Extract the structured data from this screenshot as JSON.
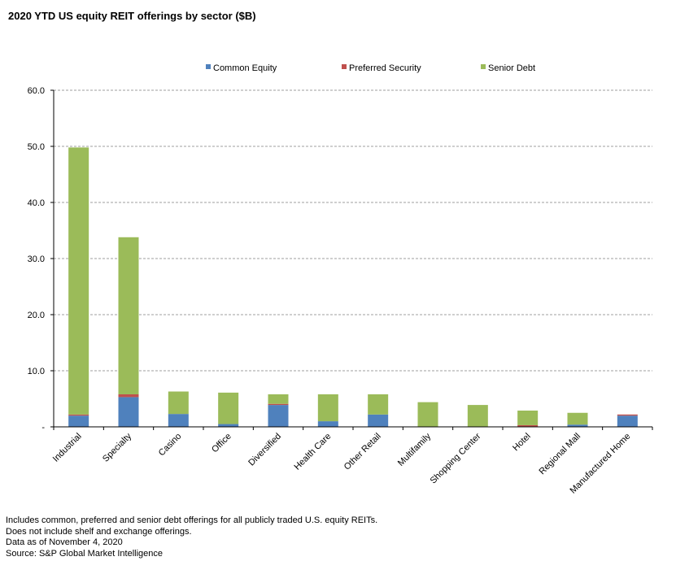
{
  "chart_data": {
    "type": "bar",
    "stacked": true,
    "title": "2020 YTD US equity REIT offerings by sector ($B)",
    "categories": [
      "Industrial",
      "Specialty",
      "Casino",
      "Office",
      "Diversified",
      "Health Care",
      "Other Retail",
      "Multifamily",
      "Shopping Center",
      "Hotel",
      "Regional Mall",
      "Manufactured Home"
    ],
    "series": [
      {
        "name": "Common Equity",
        "color": "#4f81bd",
        "values": [
          2.0,
          5.3,
          2.3,
          0.5,
          3.9,
          1.0,
          2.2,
          0.0,
          0.0,
          0.0,
          0.4,
          2.0
        ]
      },
      {
        "name": "Preferred Security",
        "color": "#c0504d",
        "values": [
          0.2,
          0.5,
          0.0,
          0.0,
          0.2,
          0.0,
          0.0,
          0.0,
          0.0,
          0.3,
          0.0,
          0.2
        ]
      },
      {
        "name": "Senior Debt",
        "color": "#9bbb59",
        "values": [
          47.6,
          28.0,
          4.0,
          5.6,
          1.7,
          4.8,
          3.6,
          4.4,
          3.9,
          2.6,
          2.1,
          0.0
        ]
      }
    ],
    "ylim": [
      0,
      60
    ],
    "yticks": [
      "-",
      "10.0",
      "20.0",
      "30.0",
      "40.0",
      "50.0",
      "60.0"
    ],
    "grid": true,
    "legend": "top"
  },
  "notes": [
    "Includes common, preferred and senior debt offerings for all publicly traded U.S. equity REITs.",
    "Does not include shelf and exchange offerings.",
    "Data as of November 4, 2020",
    "Source: S&P Global Market Intelligence"
  ]
}
